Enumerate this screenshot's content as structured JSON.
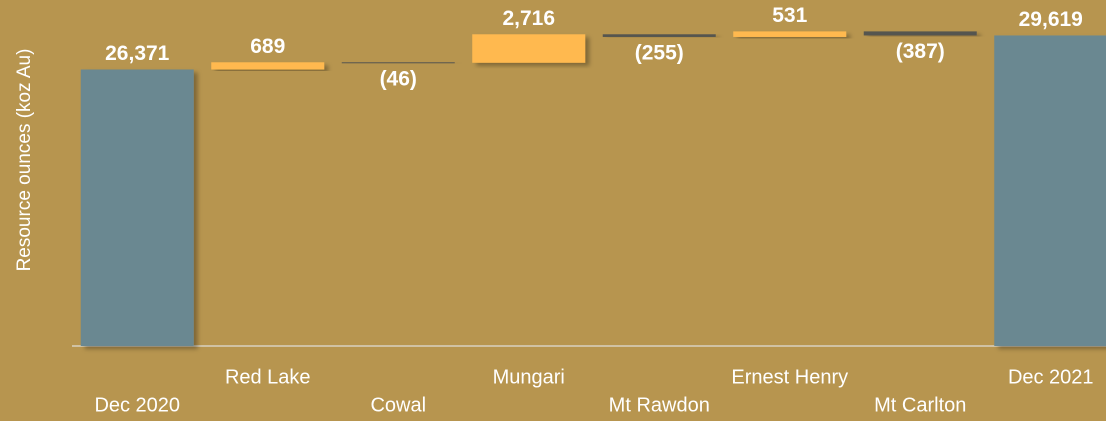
{
  "chart_data": {
    "type": "waterfall",
    "y_label": "Resource ounces (koz Au)",
    "categories": [
      "Dec 2020",
      "Red Lake",
      "Cowal",
      "Mungari",
      "Mt Rawdon",
      "Ernest Henry",
      "Mt Carlton",
      "Dec 2021"
    ],
    "measure": [
      "total",
      "relative",
      "relative",
      "relative",
      "relative",
      "relative",
      "relative",
      "total"
    ],
    "values": [
      26371,
      689,
      -46,
      2716,
      -255,
      531,
      -387,
      29619
    ],
    "value_labels": [
      "26,371",
      "689",
      "(46)",
      "2,716",
      "(255)",
      "531",
      "(387)",
      "29,619"
    ],
    "colors": {
      "total": "#6a8891",
      "increase": "#ffb94f",
      "decrease": "#55544f"
    },
    "ylim": [
      0,
      33000
    ]
  }
}
